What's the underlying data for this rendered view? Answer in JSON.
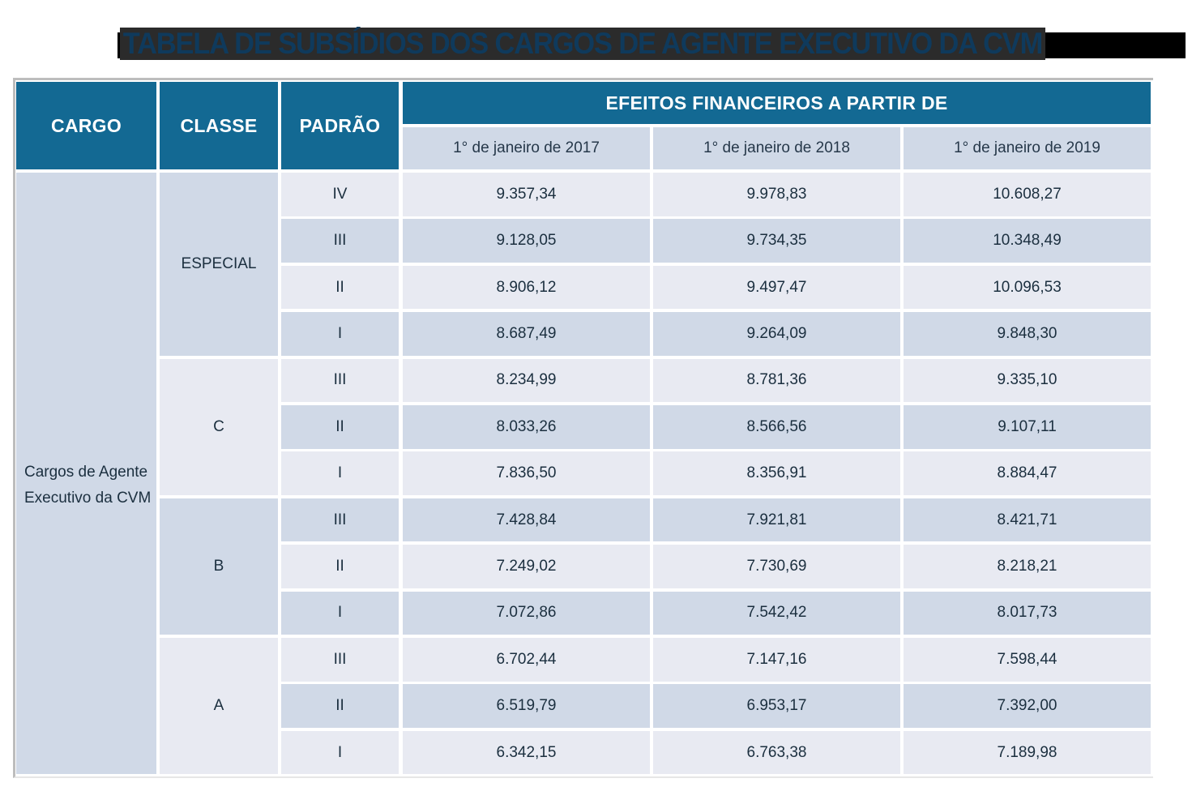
{
  "title": "TABELA DE SUBSÍDIOS DOS CARGOS DE AGENTE EXECUTIVO DA CVM",
  "colors": {
    "header_bg": "#136993",
    "header_text": "#ffffff",
    "row_dark": "#d0d9e7",
    "row_light": "#e8eaf2",
    "title_text": "#0f3a5c",
    "cell_text": "#1b2f3f"
  },
  "table": {
    "headers": {
      "cargo": "CARGO",
      "classe": "CLASSE",
      "padrao": "PADRÃO",
      "efeitos": "EFEITOS FINANCEIROS A PARTIR DE",
      "dates": [
        "1° de janeiro de 2017",
        "1° de janeiro de 2018",
        "1° de janeiro de 2019"
      ]
    },
    "cargo": "Cargos de Agente Executivo da CVM",
    "cargo_lines": [
      "Cargos de Agente",
      "Executivo da CVM"
    ],
    "classes": [
      {
        "name": "ESPECIAL",
        "rows": [
          {
            "padrao": "IV",
            "values": [
              "9.357,34",
              "9.978,83",
              "10.608,27"
            ]
          },
          {
            "padrao": "III",
            "values": [
              "9.128,05",
              "9.734,35",
              "10.348,49"
            ]
          },
          {
            "padrao": "II",
            "values": [
              "8.906,12",
              "9.497,47",
              "10.096,53"
            ]
          },
          {
            "padrao": "I",
            "values": [
              "8.687,49",
              "9.264,09",
              "9.848,30"
            ]
          }
        ]
      },
      {
        "name": "C",
        "rows": [
          {
            "padrao": "III",
            "values": [
              "8.234,99",
              "8.781,36",
              "9.335,10"
            ]
          },
          {
            "padrao": "II",
            "values": [
              "8.033,26",
              "8.566,56",
              "9.107,11"
            ]
          },
          {
            "padrao": "I",
            "values": [
              "7.836,50",
              "8.356,91",
              "8.884,47"
            ]
          }
        ]
      },
      {
        "name": "B",
        "rows": [
          {
            "padrao": "III",
            "values": [
              "7.428,84",
              "7.921,81",
              "8.421,71"
            ]
          },
          {
            "padrao": "II",
            "values": [
              "7.249,02",
              "7.730,69",
              "8.218,21"
            ]
          },
          {
            "padrao": "I",
            "values": [
              "7.072,86",
              "7.542,42",
              "8.017,73"
            ]
          }
        ]
      },
      {
        "name": "A",
        "rows": [
          {
            "padrao": "III",
            "values": [
              "6.702,44",
              "7.147,16",
              "7.598,44"
            ]
          },
          {
            "padrao": "II",
            "values": [
              "6.519,79",
              "6.953,17",
              "7.392,00"
            ]
          },
          {
            "padrao": "I",
            "values": [
              "6.342,15",
              "6.763,38",
              "7.189,98"
            ]
          }
        ]
      }
    ]
  }
}
